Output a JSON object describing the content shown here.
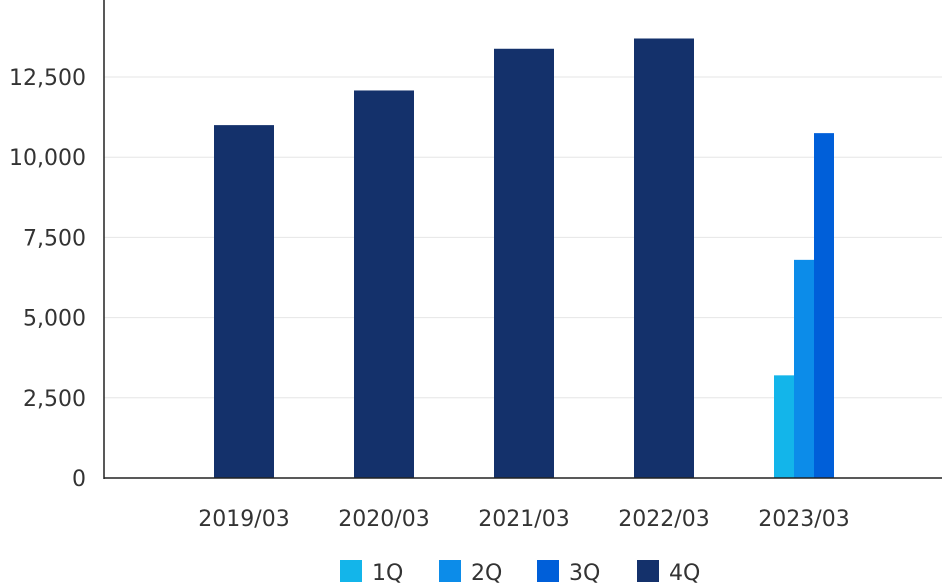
{
  "chart_data": {
    "type": "bar",
    "title": "",
    "xlabel": "",
    "ylabel": "",
    "categories": [
      "2019/03",
      "2020/03",
      "2021/03",
      "2022/03",
      "2023/03"
    ],
    "series": [
      {
        "name": "1Q",
        "color": "#13b5ea",
        "values": [
          null,
          null,
          null,
          null,
          3200
        ]
      },
      {
        "name": "2Q",
        "color": "#0c8ce9",
        "values": [
          null,
          null,
          null,
          null,
          6800
        ]
      },
      {
        "name": "3Q",
        "color": "#005fd9",
        "values": [
          null,
          null,
          null,
          null,
          10750
        ]
      },
      {
        "name": "4Q",
        "color": "#14316b",
        "values": [
          11000,
          12080,
          13380,
          13700,
          null
        ]
      }
    ],
    "ylim": [
      0,
      14900
    ],
    "yticks": [
      0,
      2500,
      5000,
      7500,
      10000,
      12500
    ],
    "ytick_labels": [
      "0",
      "2,500",
      "5,000",
      "7,500",
      "10,000",
      "12,500"
    ],
    "grid": true,
    "legend_position": "bottom"
  }
}
